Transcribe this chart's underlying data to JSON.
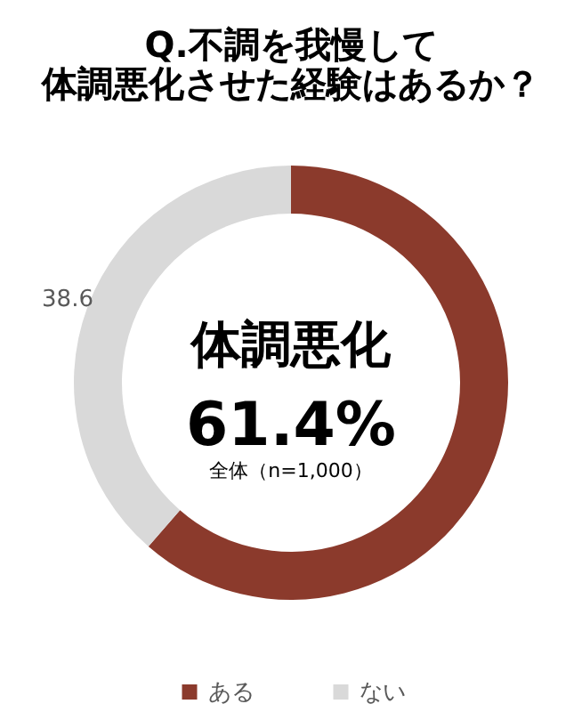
{
  "chart_data": {
    "type": "donut",
    "title": [
      "Q.不調を我慢して",
      "体調悪化させた経験はあるか？"
    ],
    "categories": [
      "ある",
      "ない"
    ],
    "values": [
      61.4,
      38.6
    ],
    "colors": [
      "#8b3a2c",
      "#d9d9d9"
    ],
    "value_labels": [
      null,
      "38.6"
    ],
    "annotations": [
      "体調悪化",
      "61.4%",
      "全体（n=1,000）"
    ],
    "legend": "bottom"
  }
}
